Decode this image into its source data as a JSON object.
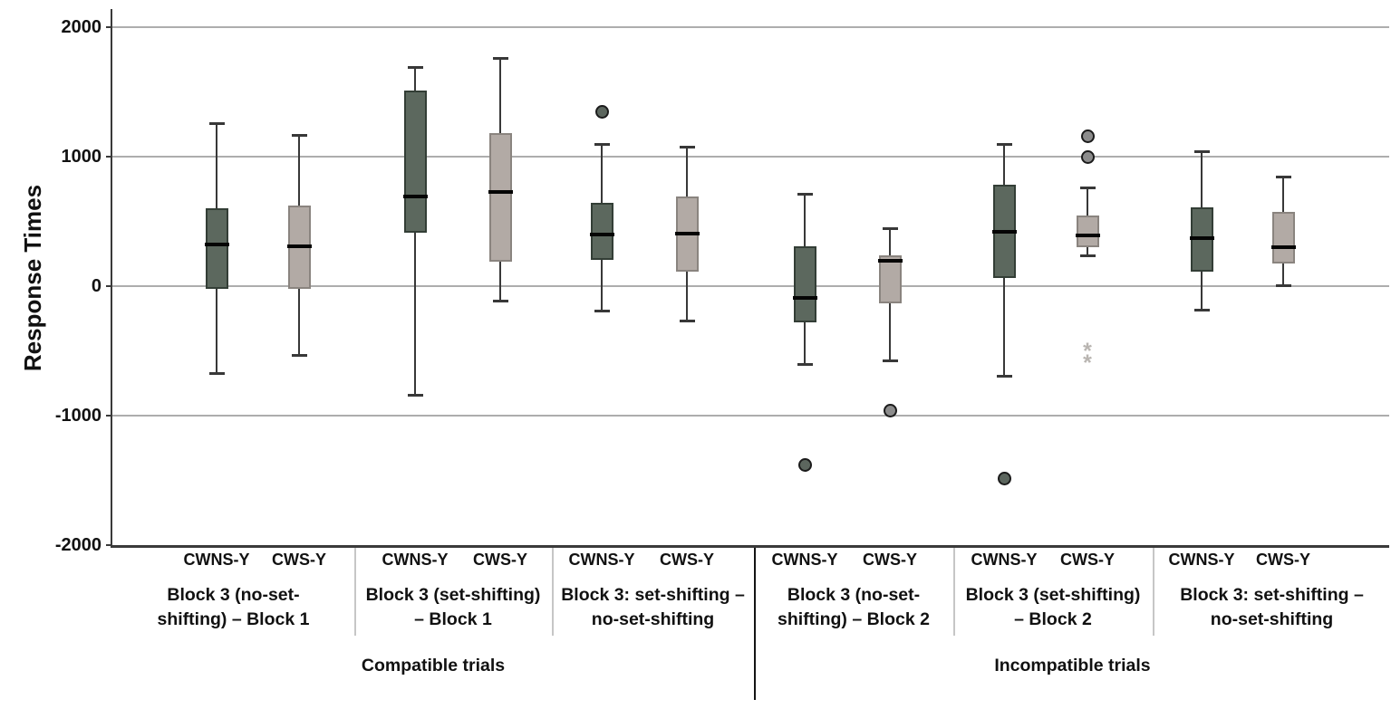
{
  "chart_data": {
    "type": "box",
    "title": "",
    "ylabel": "Response Times",
    "ylim": [
      -2000,
      2000
    ],
    "yticks": [
      2000,
      1000,
      0,
      -1000,
      -2000
    ],
    "ytick_labels": [
      "2000",
      "1000",
      "0",
      "-1000",
      "-2000"
    ],
    "grid": "horizontal-only",
    "legend_position": "none",
    "series": [
      "CWNS-Y",
      "CWS-Y"
    ],
    "colors": {
      "cwns_fill": "#5c685e",
      "cwns_border": "#333e36",
      "cws_fill": "#b2aaa5",
      "cws_border": "#8a847f",
      "median": "#050505",
      "whisker": "#383838",
      "outlier_cwns_fill": "#5c665e",
      "outlier_cws_fill": "#8c8c8c",
      "extreme_star": "#b9b5b1",
      "gridline": "#adadad",
      "axis": "#3a3a3a"
    },
    "halves": [
      {
        "label": "Compatible trials",
        "groups": [
          {
            "label": "Block 3 (no-set-shifting) – Block 1",
            "label_lines": [
              "Block 3 (no-set-",
              "shifting) – Block 1"
            ],
            "boxes": [
              {
                "series": "CWNS-Y",
                "whisker_low": -670,
                "q1": -20,
                "median": 320,
                "q3": 600,
                "whisker_high": 1260,
                "outliers": [],
                "extremes": []
              },
              {
                "series": "CWS-Y",
                "whisker_low": -530,
                "q1": -20,
                "median": 310,
                "q3": 620,
                "whisker_high": 1170,
                "outliers": [],
                "extremes": []
              }
            ]
          },
          {
            "label": "Block 3 (set-shifting) – Block 1",
            "label_lines": [
              "Block 3 (set-shifting)",
              "– Block 1"
            ],
            "boxes": [
              {
                "series": "CWNS-Y",
                "whisker_low": -840,
                "q1": 410,
                "median": 690,
                "q3": 1510,
                "whisker_high": 1690,
                "outliers": [],
                "extremes": []
              },
              {
                "series": "CWS-Y",
                "whisker_low": -110,
                "q1": 190,
                "median": 730,
                "q3": 1180,
                "whisker_high": 1760,
                "outliers": [],
                "extremes": []
              }
            ]
          },
          {
            "label": "Block 3: set-shifting – no-set-shifting",
            "label_lines": [
              "Block 3: set-shifting –",
              "no-set-shifting"
            ],
            "boxes": [
              {
                "series": "CWNS-Y",
                "whisker_low": -190,
                "q1": 200,
                "median": 400,
                "q3": 645,
                "whisker_high": 1100,
                "outliers": [
                  1350
                ],
                "extremes": []
              },
              {
                "series": "CWS-Y",
                "whisker_low": -265,
                "q1": 110,
                "median": 405,
                "q3": 695,
                "whisker_high": 1075,
                "outliers": [],
                "extremes": []
              }
            ]
          }
        ]
      },
      {
        "label": "Incompatible trials",
        "groups": [
          {
            "label": "Block 3 (no-set-shifting) – Block 2",
            "label_lines": [
              "Block 3 (no-set-",
              "shifting) – Block 2"
            ],
            "boxes": [
              {
                "series": "CWNS-Y",
                "whisker_low": -600,
                "q1": -280,
                "median": -90,
                "q3": 305,
                "whisker_high": 710,
                "outliers": [
                  -1380
                ],
                "extremes": []
              },
              {
                "series": "CWS-Y",
                "whisker_low": -570,
                "q1": -130,
                "median": 195,
                "q3": 240,
                "whisker_high": 445,
                "outliers": [
                  -960
                ],
                "extremes": []
              }
            ]
          },
          {
            "label": "Block 3 (set-shifting) – Block 2",
            "label_lines": [
              "Block 3 (set-shifting)",
              "– Block 2"
            ],
            "boxes": [
              {
                "series": "CWNS-Y",
                "whisker_low": -695,
                "q1": 65,
                "median": 420,
                "q3": 785,
                "whisker_high": 1100,
                "outliers": [
                  -1480
                ],
                "extremes": []
              },
              {
                "series": "CWS-Y",
                "whisker_low": 240,
                "q1": 300,
                "median": 390,
                "q3": 545,
                "whisker_high": 760,
                "outliers": [
                  1160,
                  1000
                ],
                "extremes": [
                  -480,
                  -575
                ]
              }
            ]
          },
          {
            "label": "Block 3: set-shifting – no-set-shifting",
            "label_lines": [
              "Block 3: set-shifting –",
              "no-set-shifting"
            ],
            "boxes": [
              {
                "series": "CWNS-Y",
                "whisker_low": -180,
                "q1": 110,
                "median": 370,
                "q3": 610,
                "whisker_high": 1040,
                "outliers": [],
                "extremes": []
              },
              {
                "series": "CWS-Y",
                "whisker_low": 10,
                "q1": 175,
                "median": 300,
                "q3": 570,
                "whisker_high": 845,
                "outliers": [],
                "extremes": []
              }
            ]
          }
        ]
      }
    ]
  }
}
